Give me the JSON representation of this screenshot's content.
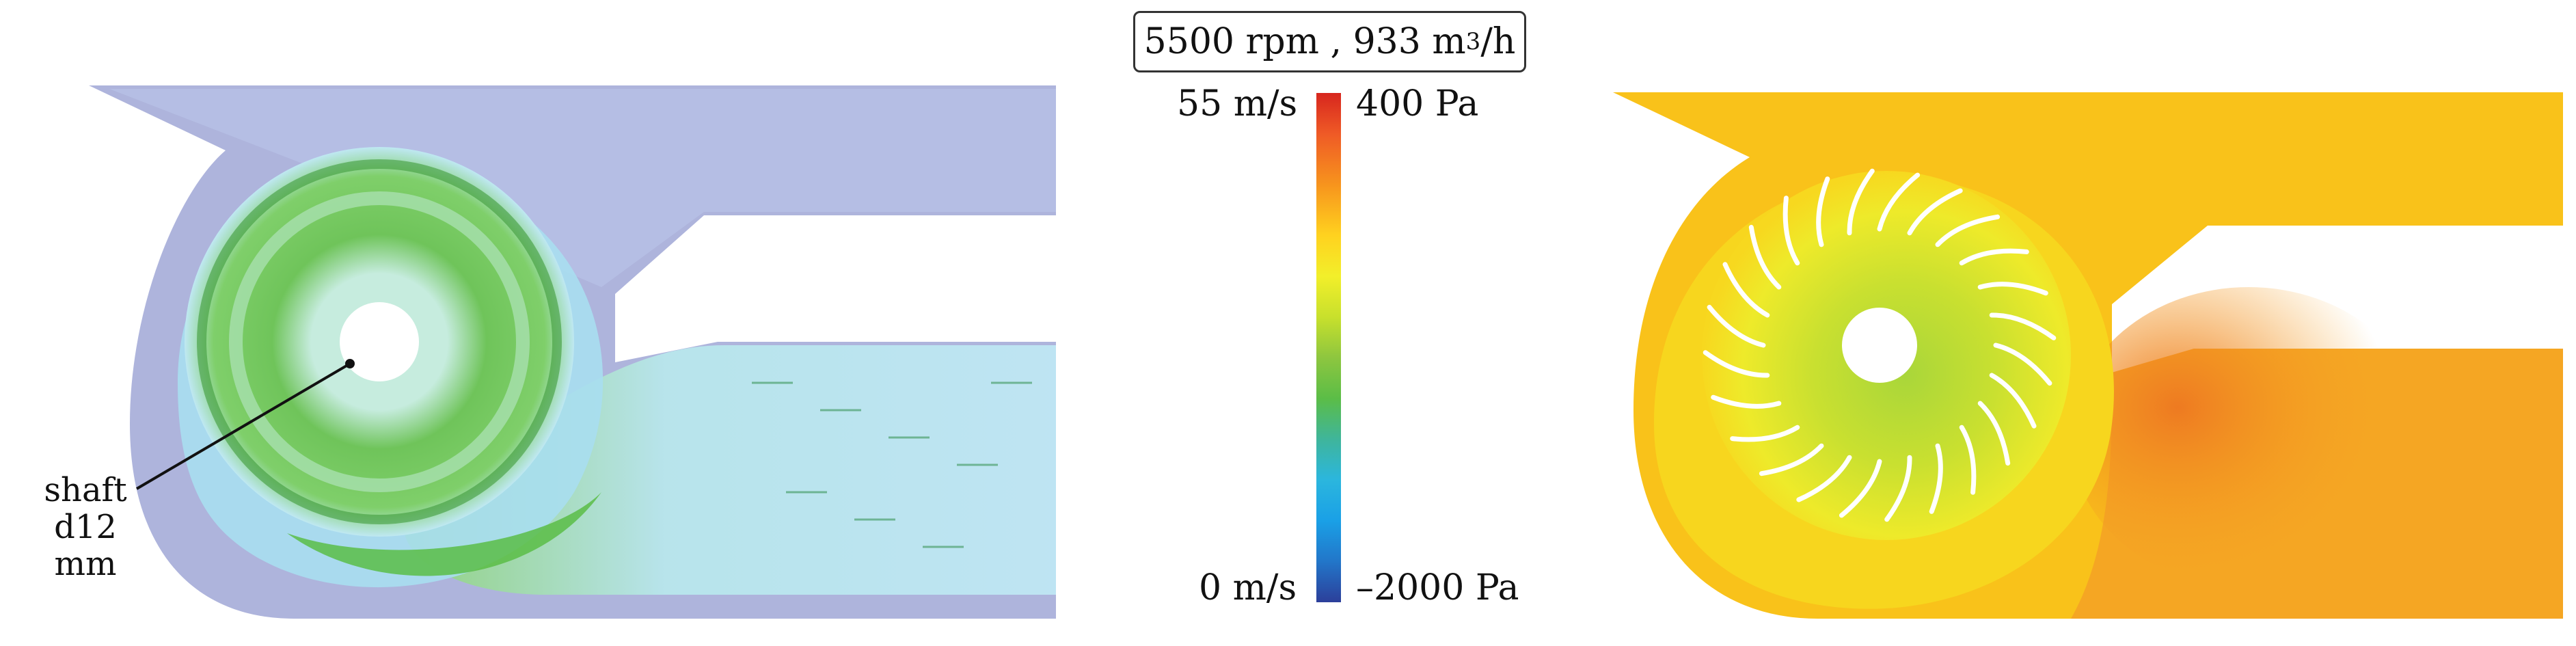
{
  "header": {
    "operating_point": "5500 rpm , 933 m",
    "unit_exp": "3",
    "unit_tail": "/h"
  },
  "colorbar": {
    "velocity_max": "55 m/s",
    "velocity_min": "0 m/s",
    "pressure_max": "400 Pa",
    "pressure_min": "–2000 Pa",
    "colors": [
      "#d7261e",
      "#f7941d",
      "#ffd21f",
      "#c8e02c",
      "#5bbd47",
      "#2bb6de",
      "#2276c9",
      "#2c3f9a"
    ]
  },
  "annotation": {
    "line1": "shaft",
    "line2": "d12 mm"
  },
  "pressure_colors": {
    "inlet": "#f9c21a",
    "outlet": "#f5a623",
    "high": "#ee7a21",
    "low": "#8ccc3a"
  },
  "velocity_colors": {
    "background": "#aeb4dc",
    "fast": "#5bbd47",
    "mid": "#a8e0f0"
  }
}
